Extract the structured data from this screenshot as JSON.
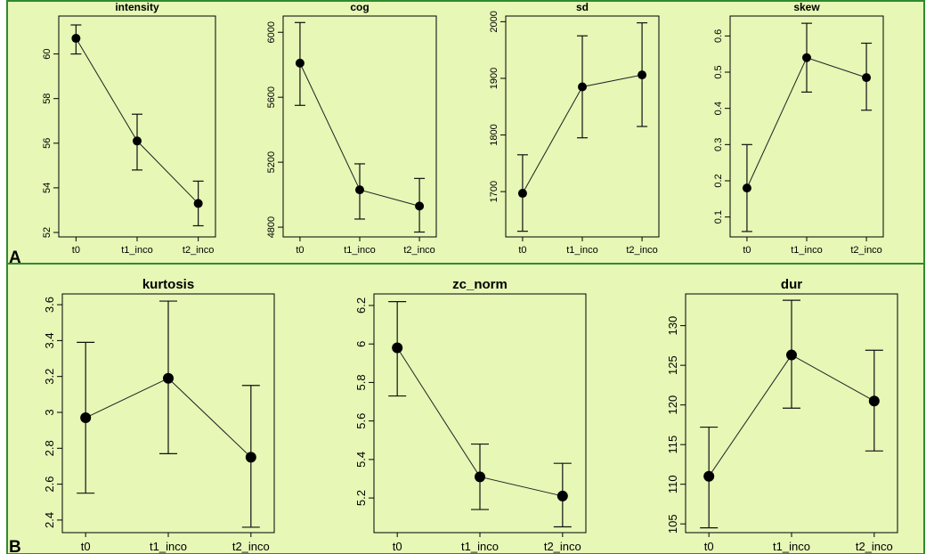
{
  "panels": [
    {
      "letter": "A"
    },
    {
      "letter": "B"
    }
  ],
  "chart_data": [
    {
      "type": "line",
      "panel": "A",
      "title": "intensity",
      "categories": [
        "t0",
        "t1_inco",
        "t2_inco"
      ],
      "values": [
        60.7,
        56.1,
        53.3
      ],
      "error_low": [
        60.0,
        54.8,
        52.3
      ],
      "error_high": [
        61.3,
        57.3,
        54.3
      ],
      "ylim": [
        51.8,
        61.7
      ],
      "yticks": [
        52,
        54,
        56,
        58,
        60
      ],
      "xlabel": "",
      "ylabel": ""
    },
    {
      "type": "line",
      "panel": "A",
      "title": "cog",
      "categories": [
        "t0",
        "t1_inco",
        "t2_inco"
      ],
      "values": [
        5810,
        5030,
        4930
      ],
      "error_low": [
        5550,
        4850,
        4770
      ],
      "error_high": [
        6060,
        5190,
        5100
      ],
      "ylim": [
        4740,
        6100
      ],
      "yticks": [
        4800,
        5200,
        5600,
        6000
      ],
      "xlabel": "",
      "ylabel": ""
    },
    {
      "type": "line",
      "panel": "A",
      "title": "sd",
      "categories": [
        "t0",
        "t1_inco",
        "t2_inco"
      ],
      "values": [
        1697,
        1885,
        1906
      ],
      "error_low": [
        1630,
        1795,
        1815
      ],
      "error_high": [
        1765,
        1975,
        1998
      ],
      "ylim": [
        1620,
        2010
      ],
      "yticks": [
        1700,
        1800,
        1900,
        2000
      ],
      "xlabel": "",
      "ylabel": ""
    },
    {
      "type": "line",
      "panel": "A",
      "title": "skew",
      "categories": [
        "t0",
        "t1_inco",
        "t2_inco"
      ],
      "values": [
        0.18,
        0.54,
        0.485
      ],
      "error_low": [
        0.06,
        0.445,
        0.395
      ],
      "error_high": [
        0.3,
        0.635,
        0.58
      ],
      "ylim": [
        0.045,
        0.655
      ],
      "yticks": [
        0.1,
        0.2,
        0.3,
        0.4,
        0.5,
        0.6
      ],
      "xlabel": "",
      "ylabel": ""
    },
    {
      "type": "line",
      "panel": "B",
      "title": "kurtosis",
      "categories": [
        "t0",
        "t1_inco",
        "t2_inco"
      ],
      "values": [
        2.97,
        3.19,
        2.75
      ],
      "error_low": [
        2.55,
        2.77,
        2.36
      ],
      "error_high": [
        3.39,
        3.62,
        3.15
      ],
      "ylim": [
        2.33,
        3.66
      ],
      "yticks": [
        2.4,
        2.6,
        2.8,
        3.0,
        3.2,
        3.4,
        3.6
      ],
      "xlabel": "",
      "ylabel": ""
    },
    {
      "type": "line",
      "panel": "B",
      "title": "zc_norm",
      "categories": [
        "t0",
        "t1_inco",
        "t2_inco"
      ],
      "values": [
        5.98,
        5.31,
        5.21
      ],
      "error_low": [
        5.73,
        5.14,
        5.05
      ],
      "error_high": [
        6.22,
        5.48,
        5.38
      ],
      "ylim": [
        5.02,
        6.26
      ],
      "yticks": [
        5.2,
        5.4,
        5.6,
        5.8,
        6.0,
        6.2
      ],
      "xlabel": "",
      "ylabel": ""
    },
    {
      "type": "line",
      "panel": "B",
      "title": "dur",
      "categories": [
        "t0",
        "t1_inco",
        "t2_inco"
      ],
      "values": [
        111.0,
        126.3,
        120.5
      ],
      "error_low": [
        104.5,
        119.6,
        114.2
      ],
      "error_high": [
        117.2,
        133.2,
        126.9
      ],
      "ylim": [
        103.9,
        134.0
      ],
      "yticks": [
        105,
        110,
        115,
        120,
        125,
        130
      ],
      "xlabel": "",
      "ylabel": ""
    }
  ]
}
